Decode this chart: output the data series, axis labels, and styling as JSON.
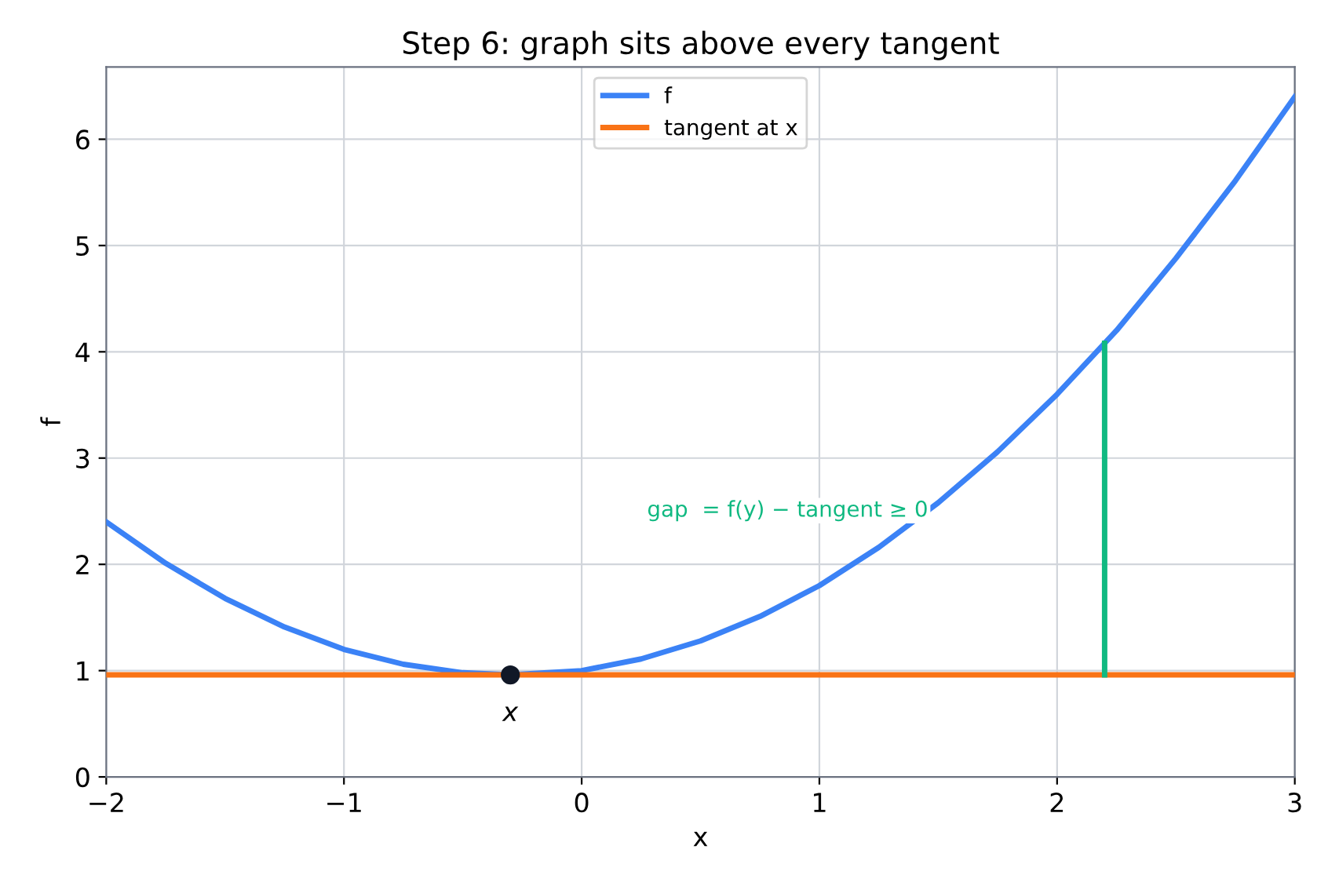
{
  "chart_data": {
    "type": "line",
    "title": "Step 6: graph sits above every tangent",
    "xlabel": "x",
    "ylabel": "f",
    "series": [
      {
        "name": "f",
        "color": "#3b82f6",
        "x": [
          -2,
          -1.75,
          -1.5,
          -1.25,
          -1,
          -0.75,
          -0.5,
          -0.3,
          0,
          0.25,
          0.5,
          0.75,
          1,
          1.25,
          1.5,
          1.75,
          2,
          2.25,
          2.5,
          2.75,
          3
        ],
        "values": [
          2.4,
          2.01,
          1.68,
          1.41,
          1.2,
          1.06,
          0.98,
          0.96,
          1.0,
          1.11,
          1.28,
          1.51,
          1.8,
          2.16,
          2.58,
          3.06,
          3.6,
          4.2,
          4.88,
          5.61,
          6.4
        ]
      },
      {
        "name": "tangent at x",
        "color": "#f97316",
        "x": [
          -2,
          3
        ],
        "values": [
          0.96,
          0.96
        ]
      },
      {
        "type": "line",
        "color": "#10b981",
        "x": [
          2.2,
          2.2
        ],
        "values": [
          0.96,
          4.08
        ]
      },
      {
        "type": "scatter",
        "color": "#111827",
        "x": [
          -0.3
        ],
        "values": [
          0.96
        ],
        "marker": "circle"
      }
    ],
    "annotations": [
      "gap  = f(y) − tangent ≥ 0",
      {
        "text": "x",
        "x": -0.3,
        "y": 0.96
      }
    ],
    "xlim": [
      -2,
      3
    ],
    "xticks": [
      {
        "value": -2,
        "label": "−2"
      },
      {
        "value": -1,
        "label": "−1"
      },
      0,
      1,
      2,
      3
    ],
    "ylim": [
      0,
      6.68
    ],
    "yticks": [
      0,
      1,
      2,
      3,
      4,
      5,
      6
    ],
    "grid": true,
    "legend": "top"
  }
}
